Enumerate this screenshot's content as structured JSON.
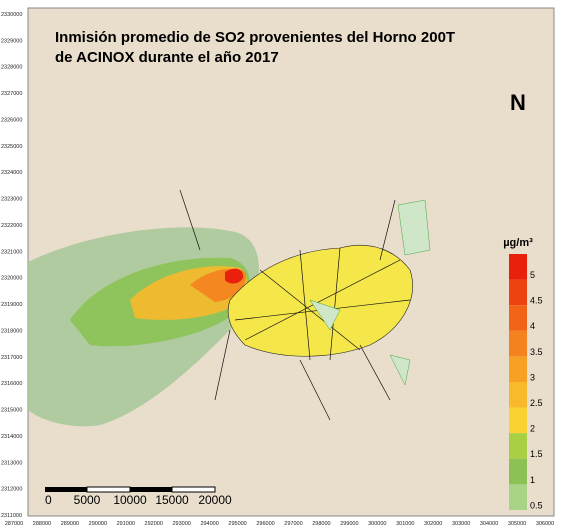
{
  "title": [
    "Inmisión promedio de SO2 provenientes del Horno 200T",
    "de ACINOX durante el año 2017"
  ],
  "x_ticks": [
    287000,
    288000,
    289000,
    290000,
    291000,
    292000,
    293000,
    294000,
    295000,
    296000,
    297000,
    298000,
    299000,
    300000,
    301000,
    302000,
    303000,
    304000,
    305000,
    306000
  ],
  "y_ticks": [
    2330000,
    2329000,
    2328000,
    2327000,
    2326000,
    2325000,
    2324000,
    2323000,
    2322000,
    2321000,
    2320000,
    2319000,
    2318000,
    2317000,
    2316000,
    2315000,
    2314000,
    2313000,
    2312000,
    2311000
  ],
  "legend": {
    "unit": "µg/m³",
    "items": [
      {
        "label": 5,
        "color": "#e8200c"
      },
      {
        "label": 4.5,
        "color": "#ee4212"
      },
      {
        "label": 4,
        "color": "#f26418"
      },
      {
        "label": 3.5,
        "color": "#f4821e"
      },
      {
        "label": 3,
        "color": "#f6a024"
      },
      {
        "label": 2.5,
        "color": "#f8b92a"
      },
      {
        "label": 2,
        "color": "#fad232"
      },
      {
        "label": 1.5,
        "color": "#a9d044"
      },
      {
        "label": 1,
        "color": "#8cc253"
      },
      {
        "label": 0.5,
        "color": "#a9d487"
      }
    ]
  },
  "scale_bar": [
    "0",
    "5000",
    "10000",
    "15000",
    "20000"
  ],
  "north": "N"
}
